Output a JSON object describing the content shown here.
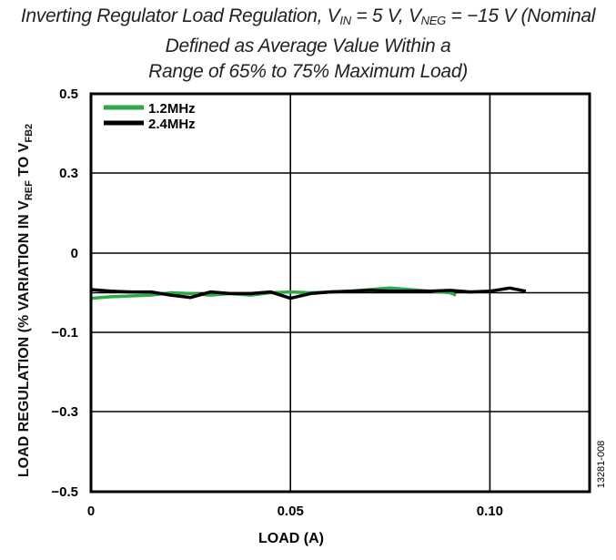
{
  "chart_data": {
    "type": "line",
    "title": {
      "main_pre": "Inverting Regulator Load Regulation, V",
      "sub1": "IN",
      "mid1": " = 5 V, V",
      "sub2": "NEG",
      "mid2": " = −15 V (Nominal",
      "line2": "Defined as Average Value Within a",
      "line3": "Range of 65% to 75% Maximum Load)"
    },
    "xlabel": "LOAD (A)",
    "ylabel": {
      "pre": "LOAD REGULATION (% VARIATION IN V",
      "sub1": "REF",
      "mid": " TO V",
      "sub2": "FB2"
    },
    "xlim": [
      0,
      0.125
    ],
    "x_ticks": [
      {
        "v": 0,
        "label": "0"
      },
      {
        "v": 0.05,
        "label": "0.05"
      },
      {
        "v": 0.1,
        "label": "0.10"
      }
    ],
    "y_ticks": [
      {
        "v": 0.5,
        "label": "0.5"
      },
      {
        "v": 0.3,
        "label": "0.3"
      },
      {
        "v": 0,
        "label": "0"
      },
      {
        "v": -0.05,
        "label": ""
      },
      {
        "v": -0.1,
        "label": "−0.1"
      },
      {
        "v": -0.3,
        "label": "−0.3"
      },
      {
        "v": -0.5,
        "label": "−0.5"
      }
    ],
    "grid": true,
    "legend_placement": "top-left",
    "series": [
      {
        "name": "1.2MHz",
        "color": "#2eaa4a",
        "x": [
          0,
          0.005,
          0.01,
          0.015,
          0.02,
          0.025,
          0.03,
          0.035,
          0.04,
          0.045,
          0.05,
          0.055,
          0.06,
          0.065,
          0.07,
          0.075,
          0.08,
          0.085,
          0.09,
          0.0915
        ],
        "y": [
          -0.057,
          -0.055,
          -0.054,
          -0.053,
          -0.05,
          -0.051,
          -0.053,
          -0.051,
          -0.053,
          -0.05,
          -0.049,
          -0.05,
          -0.049,
          -0.048,
          -0.046,
          -0.044,
          -0.046,
          -0.048,
          -0.05,
          -0.053
        ]
      },
      {
        "name": "2.4MHz",
        "color": "#000000",
        "x": [
          0,
          0.005,
          0.01,
          0.015,
          0.02,
          0.025,
          0.03,
          0.035,
          0.04,
          0.045,
          0.05,
          0.055,
          0.06,
          0.065,
          0.07,
          0.075,
          0.08,
          0.085,
          0.09,
          0.095,
          0.1,
          0.105,
          0.109
        ],
        "y": [
          -0.046,
          -0.048,
          -0.049,
          -0.049,
          -0.053,
          -0.056,
          -0.049,
          -0.051,
          -0.051,
          -0.049,
          -0.057,
          -0.051,
          -0.049,
          -0.048,
          -0.047,
          -0.048,
          -0.048,
          -0.048,
          -0.047,
          -0.049,
          -0.048,
          -0.044,
          -0.048
        ]
      }
    ]
  },
  "figure_code": "13281-008"
}
